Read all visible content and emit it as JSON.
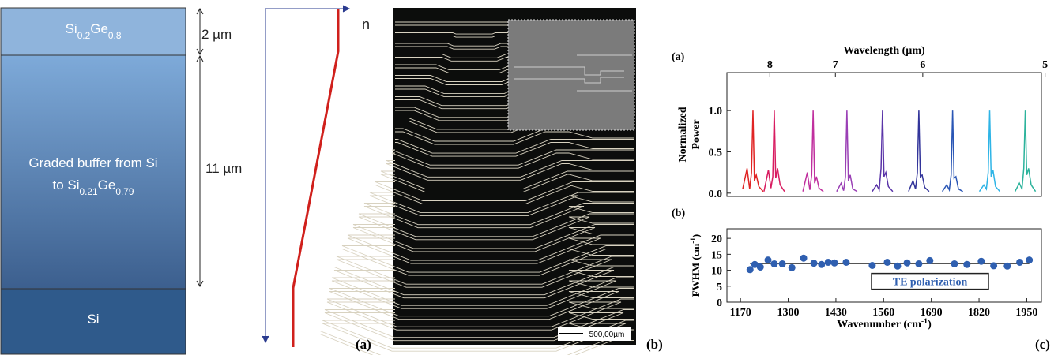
{
  "layers": [
    {
      "lines": [
        [
          {
            "t": "Si"
          },
          {
            "sub": "0.2"
          },
          {
            "t": "Ge"
          },
          {
            "sub": "0.8"
          }
        ]
      ]
    },
    {
      "lines": [
        [
          {
            "t": "Graded buffer from Si"
          }
        ],
        [
          {
            "t": "to Si"
          },
          {
            "sub": "0.21"
          },
          {
            "t": "Ge"
          },
          {
            "sub": "0.79"
          }
        ]
      ]
    },
    {
      "lines": [
        [
          {
            "t": "Si"
          }
        ]
      ]
    }
  ],
  "thickness_labels": [
    "2 µm",
    "11 µm"
  ],
  "axis_label": "n",
  "scale_bar": "500,00µm",
  "panel_labels": [
    "(a)",
    "(b)",
    "(c)"
  ],
  "chart_data": [
    {
      "type": "line",
      "subpanel_label": "(a)",
      "x2_label": "Wavelength (µm)",
      "y_label": [
        "Normalized",
        "Power"
      ],
      "xlim": [
        1133,
        1990
      ],
      "x2ticks": [
        {
          "value": 1250,
          "label": "8"
        },
        {
          "value": 1428.6,
          "label": "7"
        },
        {
          "value": 1666.7,
          "label": "6"
        },
        {
          "value": 2000,
          "label": "5"
        }
      ],
      "ylim": [
        -0.04,
        1.46
      ],
      "yticks": [
        {
          "value": 0,
          "label": "0.0"
        },
        {
          "value": 0.5,
          "label": "0.5"
        },
        {
          "value": 1,
          "label": "1.0"
        }
      ],
      "series": [
        {
          "color": "#e02424",
          "x": [
            1176,
            1188,
            1195,
            1200,
            1204,
            1208,
            1213,
            1220,
            1232
          ],
          "values": [
            0.05,
            0.3,
            0.05,
            0.25,
            1.0,
            0.15,
            0.22,
            0.08,
            0.02
          ]
        },
        {
          "color": "#d81b60",
          "x": [
            1234,
            1246,
            1253,
            1258,
            1262,
            1266,
            1271,
            1278,
            1290
          ],
          "values": [
            0.02,
            0.28,
            0.06,
            0.2,
            1.0,
            0.18,
            0.3,
            0.1,
            0.02
          ]
        },
        {
          "color": "#c02f9e",
          "x": [
            1340,
            1352,
            1359,
            1364,
            1368,
            1372,
            1377,
            1384,
            1396
          ],
          "values": [
            0.02,
            0.25,
            0.04,
            0.22,
            1.0,
            0.12,
            0.2,
            0.06,
            0.02
          ]
        },
        {
          "color": "#9a3fb5",
          "x": [
            1432,
            1444,
            1451,
            1456,
            1460,
            1464,
            1469,
            1476,
            1488
          ],
          "values": [
            0.02,
            0.12,
            0.03,
            0.2,
            1.0,
            0.15,
            0.22,
            0.05,
            0.02
          ]
        },
        {
          "color": "#5a34a8",
          "x": [
            1529,
            1541,
            1548,
            1553,
            1557,
            1561,
            1566,
            1573,
            1585
          ],
          "values": [
            0.02,
            0.1,
            0.04,
            0.3,
            1.0,
            0.2,
            0.25,
            0.08,
            0.02
          ]
        },
        {
          "color": "#32349a",
          "x": [
            1628,
            1640,
            1647,
            1652,
            1656,
            1660,
            1665,
            1672,
            1684
          ],
          "values": [
            0.02,
            0.15,
            0.05,
            0.25,
            1.0,
            0.2,
            0.22,
            0.07,
            0.02
          ]
        },
        {
          "color": "#2a56b5",
          "x": [
            1720,
            1732,
            1739,
            1744,
            1748,
            1752,
            1757,
            1764,
            1776
          ],
          "values": [
            0.02,
            0.1,
            0.04,
            0.22,
            1.0,
            0.18,
            0.2,
            0.05,
            0.02
          ]
        },
        {
          "color": "#2eb4e6",
          "x": [
            1821,
            1833,
            1840,
            1845,
            1849,
            1853,
            1858,
            1865,
            1877
          ],
          "values": [
            0.02,
            0.1,
            0.05,
            0.25,
            1.0,
            0.2,
            0.28,
            0.08,
            0.02
          ]
        },
        {
          "color": "#2db39c",
          "x": [
            1918,
            1930,
            1937,
            1942,
            1946,
            1950,
            1955,
            1962,
            1974
          ],
          "values": [
            0.02,
            0.12,
            0.05,
            0.3,
            1.0,
            0.22,
            0.3,
            0.1,
            0.02
          ]
        }
      ]
    },
    {
      "type": "scatter",
      "subpanel_label": "(b)",
      "x_label": [
        {
          "t": "Wavenumber (cm"
        },
        {
          "sup": "-1"
        },
        {
          "t": ")"
        }
      ],
      "y_label": [
        {
          "t": "FWHM (cm"
        },
        {
          "sup": "-1"
        },
        {
          "t": ")"
        }
      ],
      "xlim": [
        1133,
        1990
      ],
      "xticks": [
        1170,
        1300,
        1430,
        1560,
        1690,
        1820,
        1950
      ],
      "ylim": [
        0,
        23
      ],
      "yticks": [
        0,
        5,
        10,
        15,
        20
      ],
      "color": "#2f5fb0",
      "reference_line": 12,
      "annotation": "TE polarization",
      "x": [
        1196,
        1209,
        1224,
        1245,
        1262,
        1284,
        1310,
        1342,
        1370,
        1391,
        1409,
        1426,
        1458,
        1529,
        1570,
        1598,
        1624,
        1656,
        1686,
        1753,
        1787,
        1826,
        1860,
        1897,
        1931,
        1957
      ],
      "values": [
        10.2,
        11.8,
        11,
        13.2,
        12,
        12,
        10.8,
        13.8,
        12.2,
        11.8,
        12.5,
        12.3,
        12.5,
        11.5,
        12.5,
        11.3,
        12.3,
        12,
        13,
        12,
        11.8,
        12.8,
        11.4,
        11.3,
        12.5,
        13.2
      ]
    }
  ]
}
